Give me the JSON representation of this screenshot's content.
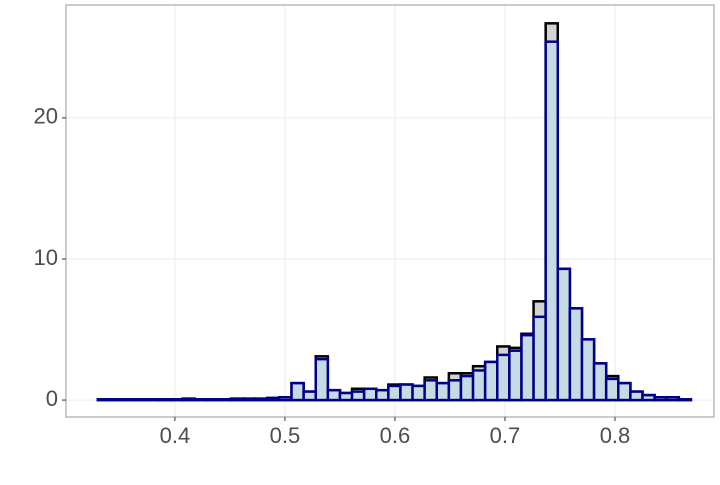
{
  "chart_data": {
    "type": "histogram",
    "bins": [
      0.33,
      0.341,
      0.352,
      0.363,
      0.374,
      0.385,
      0.396,
      0.407,
      0.418,
      0.429,
      0.44,
      0.451,
      0.462,
      0.473,
      0.484,
      0.495,
      0.506,
      0.517,
      0.528,
      0.539,
      0.55,
      0.561,
      0.572,
      0.583,
      0.594,
      0.605,
      0.616,
      0.627,
      0.638,
      0.649,
      0.66,
      0.671,
      0.682,
      0.693,
      0.704,
      0.715,
      0.726,
      0.737,
      0.748,
      0.759,
      0.77,
      0.781,
      0.792,
      0.803,
      0.814,
      0.825,
      0.836,
      0.847,
      0.858,
      0.869
    ],
    "series": [
      {
        "color": "#d3d3d3",
        "edgecolor": "#000000",
        "values": [
          0.05,
          0.05,
          0.05,
          0.05,
          0.05,
          0.05,
          0.05,
          0.1,
          0.05,
          0.05,
          0.05,
          0.1,
          0.1,
          0.1,
          0.15,
          0.2,
          1.2,
          0.6,
          3.1,
          0.7,
          0.5,
          0.8,
          0.8,
          0.7,
          1.1,
          1.1,
          1.0,
          1.6,
          1.2,
          1.9,
          1.9,
          2.4,
          2.7,
          3.8,
          3.7,
          4.7,
          7.0,
          26.7,
          9.3,
          6.5,
          4.3,
          2.6,
          1.7,
          1.2,
          0.6,
          0.35,
          0.2,
          0.2,
          0.05
        ]
      },
      {
        "color": "#c6dae3",
        "edgecolor": "#00008b",
        "values": [
          0.05,
          0.05,
          0.05,
          0.05,
          0.05,
          0.05,
          0.05,
          0.1,
          0.05,
          0.05,
          0.05,
          0.1,
          0.1,
          0.1,
          0.15,
          0.2,
          1.2,
          0.6,
          2.9,
          0.7,
          0.5,
          0.6,
          0.8,
          0.7,
          1.0,
          1.1,
          1.0,
          1.4,
          1.2,
          1.4,
          1.7,
          2.1,
          2.7,
          3.2,
          3.5,
          4.6,
          5.9,
          25.4,
          9.3,
          6.5,
          4.3,
          2.6,
          1.5,
          1.2,
          0.6,
          0.35,
          0.2,
          0.2,
          0.05
        ]
      }
    ],
    "xlim": [
      0.301,
      0.89
    ],
    "ylim": [
      -1.2,
      28
    ],
    "xticks": [
      0.4,
      0.5,
      0.6,
      0.7,
      0.8
    ],
    "yticks": [
      0,
      10,
      20
    ],
    "grid": true
  }
}
